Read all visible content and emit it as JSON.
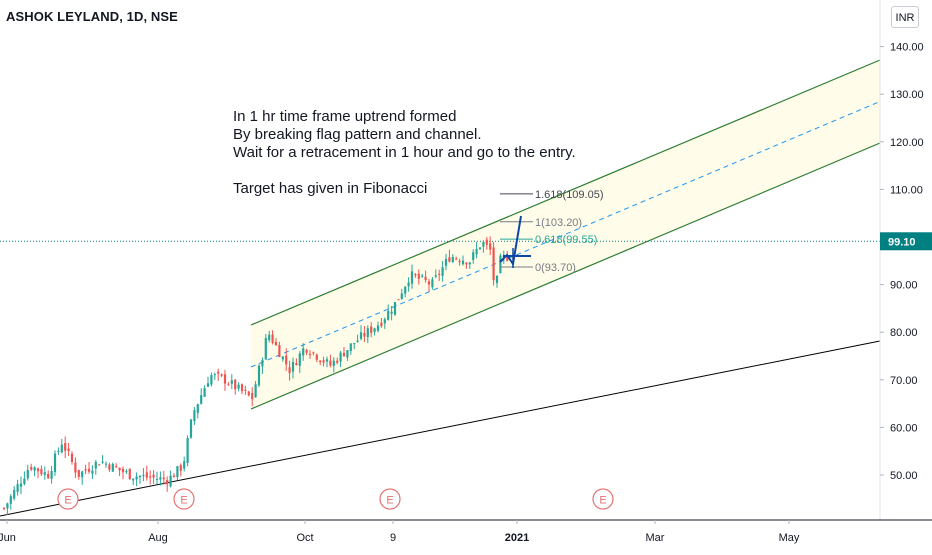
{
  "header": {
    "symbol": "ASHOK LEYLAND, 1D, NSE",
    "currency": "INR"
  },
  "price_scale": {
    "ticks": [
      "140.00",
      "130.00",
      "120.00",
      "110.00",
      "100.00",
      "90.00",
      "80.00",
      "70.00",
      "60.00",
      "50.00"
    ],
    "tick_values": [
      140,
      130,
      120,
      110,
      100,
      90,
      80,
      70,
      60,
      50
    ],
    "last_price_label": "99.10",
    "last_price": 99.1,
    "last_price_color": "#008080"
  },
  "time_scale": {
    "labels": [
      "Jun",
      "Aug",
      "Oct",
      "9",
      "2021",
      "Mar",
      "May"
    ],
    "bold_labels": [
      "2021"
    ]
  },
  "annotation": {
    "lines": [
      "In 1 hr time frame uptrend formed",
      "By breaking flag pattern and channel.",
      "Wait for a retracement in 1 hour and go to the entry.",
      "",
      "Target has given in Fibonacci"
    ]
  },
  "fibonacci": [
    {
      "label": "1.618(109.05)",
      "value": 109.05,
      "color": "#434651"
    },
    {
      "label": "1(103.20)",
      "value": 103.2,
      "color": "#787b86"
    },
    {
      "label": "0.618(99.55)",
      "value": 99.55,
      "color": "#26a69a"
    },
    {
      "label": "0(93.70)",
      "value": 93.7,
      "color": "#787b86"
    }
  ],
  "earnings_markers": {
    "label": "E",
    "count": 4
  },
  "colors": {
    "up": "#26a69a",
    "down": "#ef5350",
    "channel": "#2e7d32",
    "channel_fill": "#fffde7",
    "midline": "#2196f3",
    "trendline": "#000000",
    "arrow": "#0d47a1",
    "earnings": "#e57373"
  },
  "chart_data": {
    "type": "candlestick",
    "title": "ASHOK LEYLAND, 1D, NSE",
    "y_axis_range": [
      41,
      146
    ],
    "approx_close_path": {
      "x": [
        "Jun",
        "Jul",
        "Aug",
        "Sep",
        "Oct",
        "Nov",
        "Dec",
        "Dec",
        "2021"
      ],
      "close": [
        45,
        53,
        50,
        72,
        75,
        80,
        95,
        99,
        96
      ]
    },
    "channel_start": "Sep",
    "channel_end": "May",
    "fib_levels": [
      109.05,
      103.2,
      99.55,
      93.7
    ],
    "last_close": 99.1
  }
}
